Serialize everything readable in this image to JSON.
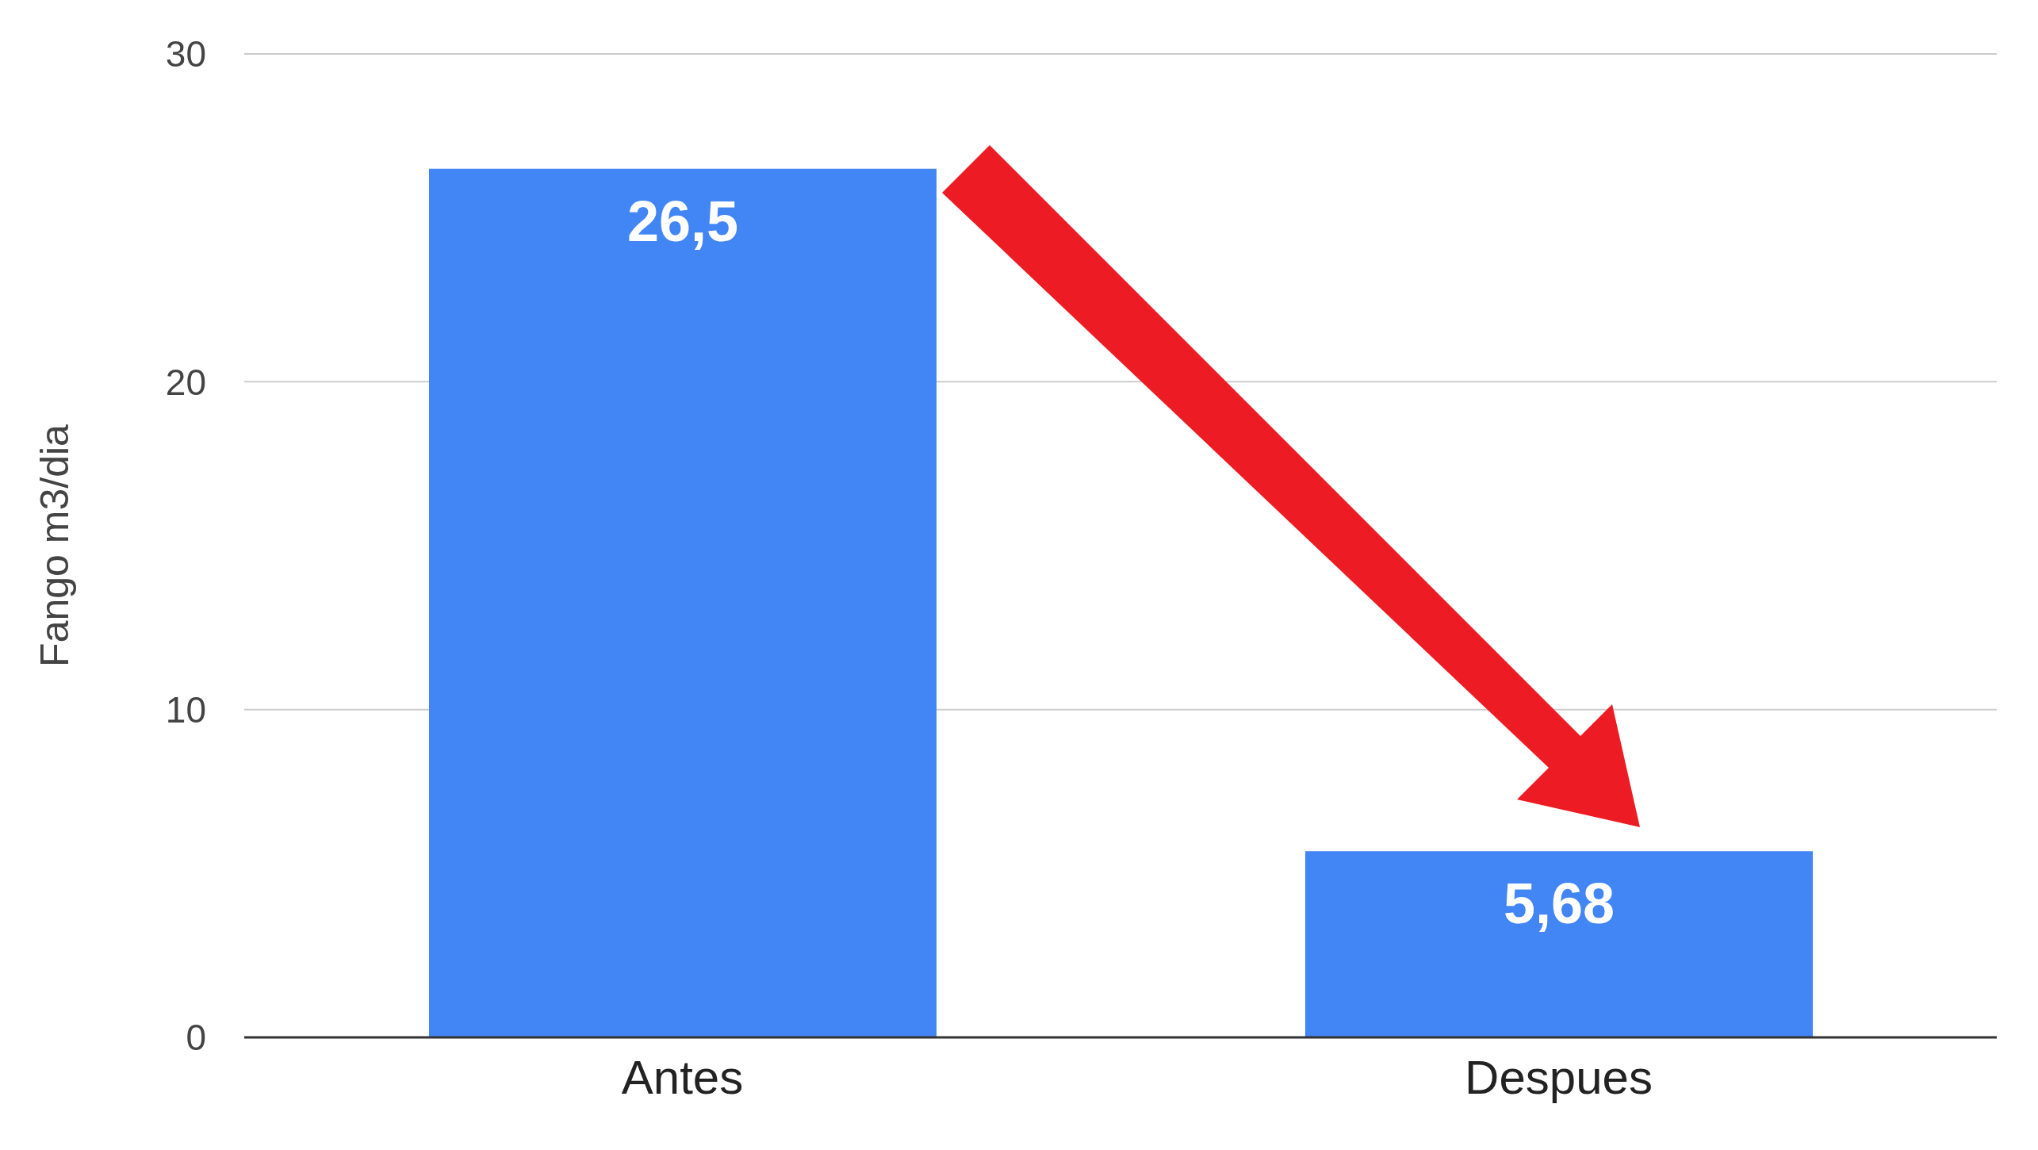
{
  "chart_data": {
    "type": "bar",
    "ylabel": "Fango m3/dia",
    "categories": [
      "Antes",
      "Despues"
    ],
    "values": [
      26.5,
      5.68
    ],
    "value_labels": [
      "26,5",
      "5,68"
    ],
    "color": "#4285f4",
    "ylim": [
      0,
      30
    ],
    "yticks": [
      0,
      10,
      20,
      30
    ],
    "grid": "y"
  }
}
